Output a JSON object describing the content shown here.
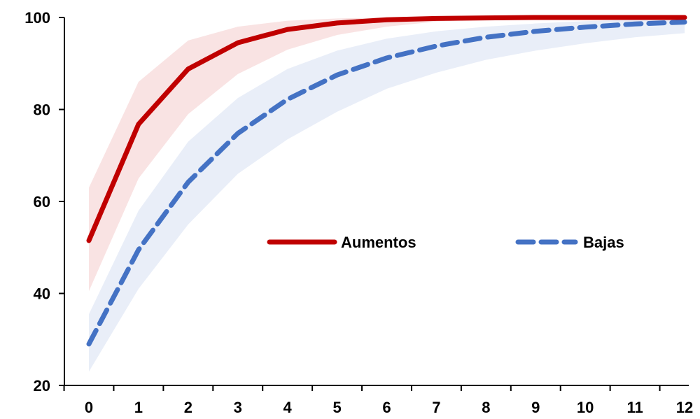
{
  "chart_data": {
    "type": "line",
    "title": "",
    "xlabel": "",
    "ylabel": "",
    "x": [
      0,
      1,
      2,
      3,
      4,
      5,
      6,
      7,
      8,
      9,
      10,
      11,
      12
    ],
    "x_tick_labels": [
      "0",
      "1",
      "2",
      "3",
      "4",
      "5",
      "6",
      "7",
      "8",
      "9",
      "10",
      "11",
      "12"
    ],
    "y_tick_labels": [
      "20",
      "40",
      "60",
      "80",
      "100"
    ],
    "xlim": [
      0,
      12
    ],
    "ylim": [
      20,
      100
    ],
    "grid": false,
    "legend_position": "center-right",
    "series": [
      {
        "name": "Aumentos",
        "color": "#c00000",
        "band_color": "#f4cccc",
        "line_style": "solid",
        "values": [
          51.5,
          76.8,
          88.8,
          94.5,
          97.4,
          98.8,
          99.5,
          99.8,
          99.9,
          100.0,
          100.0,
          100.0,
          100.0
        ],
        "band_lower": [
          40.5,
          65.0,
          79.0,
          87.7,
          93.0,
          96.2,
          98.0,
          99.1,
          99.6,
          99.8,
          99.9,
          100.0,
          100.0
        ],
        "band_upper": [
          63.0,
          86.0,
          95.0,
          98.0,
          99.3,
          99.8,
          100.0,
          100.0,
          100.0,
          100.0,
          100.0,
          100.0,
          100.0
        ]
      },
      {
        "name": "Bajas",
        "color": "#4472c4",
        "band_color": "#dae3f3",
        "line_style": "dashed",
        "values": [
          29.0,
          49.5,
          64.2,
          74.8,
          82.2,
          87.5,
          91.2,
          93.8,
          95.7,
          97.0,
          97.9,
          98.6,
          99.0
        ],
        "band_lower": [
          23.0,
          41.0,
          55.0,
          66.0,
          73.5,
          79.5,
          84.5,
          88.0,
          90.8,
          92.8,
          94.4,
          95.7,
          96.6
        ],
        "band_upper": [
          35.5,
          58.0,
          73.0,
          82.5,
          88.8,
          92.8,
          95.4,
          97.0,
          98.0,
          98.7,
          99.2,
          99.5,
          99.7
        ]
      }
    ]
  }
}
